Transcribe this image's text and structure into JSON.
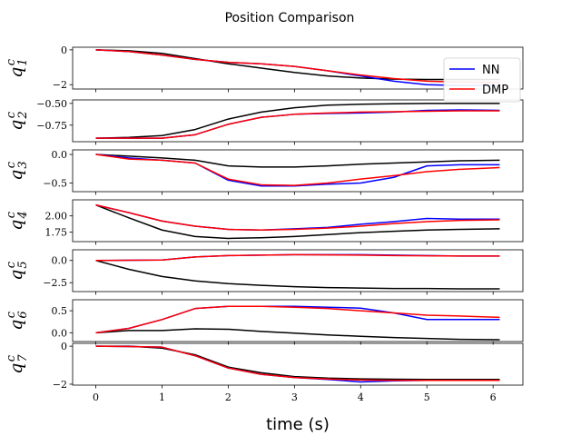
{
  "chart_data": {
    "type": "line",
    "title": "Position Comparison",
    "xlabel": "time (s)",
    "xlim": [
      -0.35,
      6.45
    ],
    "xticks": [
      0,
      1,
      2,
      3,
      4,
      5,
      6
    ],
    "x": [
      0,
      0.5,
      1.0,
      1.5,
      2.0,
      2.5,
      3.0,
      3.5,
      4.0,
      4.5,
      5.0,
      5.5,
      6.1
    ],
    "legend": {
      "position": "upper-right",
      "entries": [
        "NN",
        "DMP"
      ]
    },
    "colors": {
      "NN": "#0000ff",
      "DMP": "#ff0000",
      "reference": "#000000"
    },
    "panels": [
      {
        "ylabel": "q",
        "ylabel_sub": "1",
        "ylabel_sup": "c",
        "ylim": [
          -2.25,
          0.15
        ],
        "yticks": [
          {
            "v": 0,
            "label": "0"
          },
          {
            "v": -2,
            "label": "−2"
          }
        ],
        "series": [
          {
            "name": "NN",
            "values": [
              0,
              -0.1,
              -0.3,
              -0.55,
              -0.72,
              -0.8,
              -0.95,
              -1.2,
              -1.5,
              -1.8,
              -2.0,
              -2.05,
              -2.05
            ]
          },
          {
            "name": "DMP",
            "values": [
              0,
              -0.1,
              -0.3,
              -0.55,
              -0.72,
              -0.8,
              -0.95,
              -1.2,
              -1.45,
              -1.65,
              -1.8,
              -1.85,
              -1.88
            ]
          },
          {
            "name": "reference",
            "values": [
              0,
              -0.05,
              -0.2,
              -0.5,
              -0.8,
              -1.05,
              -1.3,
              -1.5,
              -1.62,
              -1.68,
              -1.7,
              -1.7,
              -1.7
            ]
          }
        ]
      },
      {
        "ylabel": "q",
        "ylabel_sub": "2",
        "ylabel_sup": "c",
        "ylim": [
          -0.94,
          -0.46
        ],
        "yticks": [
          {
            "v": -0.5,
            "label": "−0.50"
          },
          {
            "v": -0.75,
            "label": "−0.75"
          }
        ],
        "series": [
          {
            "name": "NN",
            "values": [
              -0.9,
              -0.9,
              -0.9,
              -0.86,
              -0.74,
              -0.66,
              -0.625,
              -0.615,
              -0.61,
              -0.6,
              -0.58,
              -0.575,
              -0.58
            ]
          },
          {
            "name": "DMP",
            "values": [
              -0.9,
              -0.9,
              -0.9,
              -0.86,
              -0.74,
              -0.66,
              -0.625,
              -0.61,
              -0.6,
              -0.595,
              -0.59,
              -0.585,
              -0.585
            ]
          },
          {
            "name": "reference",
            "values": [
              -0.9,
              -0.89,
              -0.87,
              -0.8,
              -0.68,
              -0.6,
              -0.55,
              -0.52,
              -0.51,
              -0.505,
              -0.5,
              -0.5,
              -0.5
            ]
          }
        ]
      },
      {
        "ylabel": "q",
        "ylabel_sub": "3",
        "ylabel_sup": "c",
        "ylim": [
          -0.65,
          0.08
        ],
        "yticks": [
          {
            "v": 0,
            "label": "0.0"
          },
          {
            "v": -0.5,
            "label": "−0.5"
          }
        ],
        "series": [
          {
            "name": "NN",
            "values": [
              0,
              -0.06,
              -0.1,
              -0.15,
              -0.45,
              -0.55,
              -0.55,
              -0.52,
              -0.5,
              -0.4,
              -0.2,
              -0.18,
              -0.18
            ]
          },
          {
            "name": "DMP",
            "values": [
              0,
              -0.08,
              -0.1,
              -0.15,
              -0.43,
              -0.53,
              -0.54,
              -0.5,
              -0.43,
              -0.37,
              -0.3,
              -0.26,
              -0.23
            ]
          },
          {
            "name": "reference",
            "values": [
              0,
              -0.03,
              -0.06,
              -0.1,
              -0.2,
              -0.22,
              -0.22,
              -0.2,
              -0.17,
              -0.15,
              -0.13,
              -0.11,
              -0.1
            ]
          }
        ]
      },
      {
        "ylabel": "q",
        "ylabel_sub": "4",
        "ylabel_sup": "c",
        "ylim": [
          1.6,
          2.25
        ],
        "yticks": [
          {
            "v": 2.0,
            "label": "2.00"
          },
          {
            "v": 1.75,
            "label": "1.75"
          }
        ],
        "series": [
          {
            "name": "NN",
            "values": [
              2.17,
              2.05,
              1.92,
              1.84,
              1.79,
              1.78,
              1.8,
              1.82,
              1.87,
              1.91,
              1.96,
              1.95,
              1.95
            ]
          },
          {
            "name": "DMP",
            "values": [
              2.17,
              2.05,
              1.92,
              1.84,
              1.79,
              1.78,
              1.79,
              1.81,
              1.84,
              1.88,
              1.91,
              1.93,
              1.94
            ]
          },
          {
            "name": "reference",
            "values": [
              2.17,
              1.97,
              1.78,
              1.68,
              1.65,
              1.66,
              1.68,
              1.71,
              1.74,
              1.76,
              1.78,
              1.79,
              1.8
            ]
          }
        ]
      },
      {
        "ylabel": "q",
        "ylabel_sub": "5",
        "ylabel_sup": "c",
        "ylim": [
          -3.5,
          1.2
        ],
        "yticks": [
          {
            "v": 0,
            "label": "0.0"
          },
          {
            "v": -2.5,
            "label": "−2.5"
          }
        ],
        "series": [
          {
            "name": "NN",
            "values": [
              0,
              0.02,
              0.05,
              0.4,
              0.55,
              0.6,
              0.65,
              0.65,
              0.65,
              0.6,
              0.55,
              0.5,
              0.5
            ]
          },
          {
            "name": "DMP",
            "values": [
              0,
              0.02,
              0.05,
              0.4,
              0.55,
              0.6,
              0.65,
              0.62,
              0.6,
              0.55,
              0.52,
              0.5,
              0.5
            ]
          },
          {
            "name": "reference",
            "values": [
              0,
              -1.0,
              -1.8,
              -2.3,
              -2.6,
              -2.8,
              -2.95,
              -3.05,
              -3.1,
              -3.15,
              -3.15,
              -3.2,
              -3.2
            ]
          }
        ]
      },
      {
        "ylabel": "q",
        "ylabel_sub": "6",
        "ylabel_sup": "c",
        "ylim": [
          -0.2,
          0.75
        ],
        "yticks": [
          {
            "v": 0.5,
            "label": "0.5"
          },
          {
            "v": 0,
            "label": "0.0"
          }
        ],
        "series": [
          {
            "name": "NN",
            "values": [
              0,
              0.1,
              0.3,
              0.55,
              0.6,
              0.6,
              0.6,
              0.58,
              0.56,
              0.45,
              0.3,
              0.3,
              0.3
            ]
          },
          {
            "name": "DMP",
            "values": [
              0,
              0.1,
              0.3,
              0.55,
              0.6,
              0.6,
              0.58,
              0.55,
              0.5,
              0.45,
              0.4,
              0.38,
              0.35
            ]
          },
          {
            "name": "reference",
            "values": [
              0,
              0.05,
              0.05,
              0.09,
              0.08,
              0.03,
              -0.01,
              -0.05,
              -0.08,
              -0.11,
              -0.13,
              -0.15,
              -0.16
            ]
          }
        ]
      },
      {
        "ylabel": "q",
        "ylabel_sub": "7",
        "ylabel_sup": "c",
        "ylim": [
          -2.05,
          0.15
        ],
        "yticks": [
          {
            "v": 0,
            "label": "0"
          },
          {
            "v": -2,
            "label": "−2"
          }
        ],
        "series": [
          {
            "name": "NN",
            "values": [
              0,
              -0.02,
              -0.05,
              -0.5,
              -1.15,
              -1.48,
              -1.65,
              -1.75,
              -1.88,
              -1.82,
              -1.8,
              -1.8,
              -1.8
            ]
          },
          {
            "name": "DMP",
            "values": [
              0,
              -0.02,
              -0.05,
              -0.5,
              -1.15,
              -1.48,
              -1.65,
              -1.73,
              -1.78,
              -1.8,
              -1.8,
              -1.8,
              -1.8
            ]
          },
          {
            "name": "reference",
            "values": [
              0,
              0,
              -0.1,
              -0.45,
              -1.1,
              -1.4,
              -1.6,
              -1.68,
              -1.72,
              -1.74,
              -1.75,
              -1.75,
              -1.75
            ]
          }
        ]
      }
    ]
  }
}
